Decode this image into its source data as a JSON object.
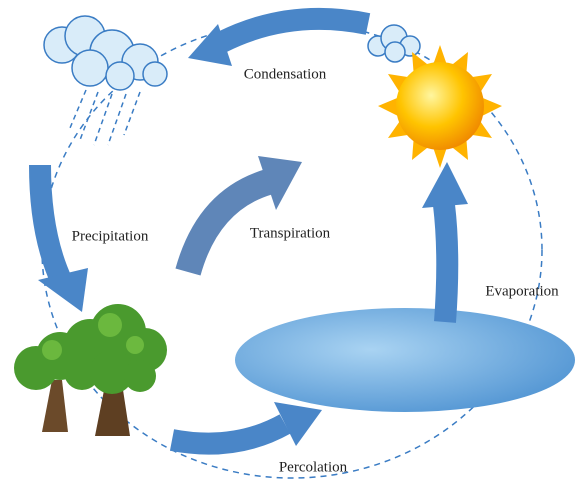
{
  "labels": {
    "condensation": "Condensation",
    "precipitation": "Precipitation",
    "transpiration": "Transpiration",
    "evaporation": "Evaporation",
    "percolation": "Percolation"
  }
}
